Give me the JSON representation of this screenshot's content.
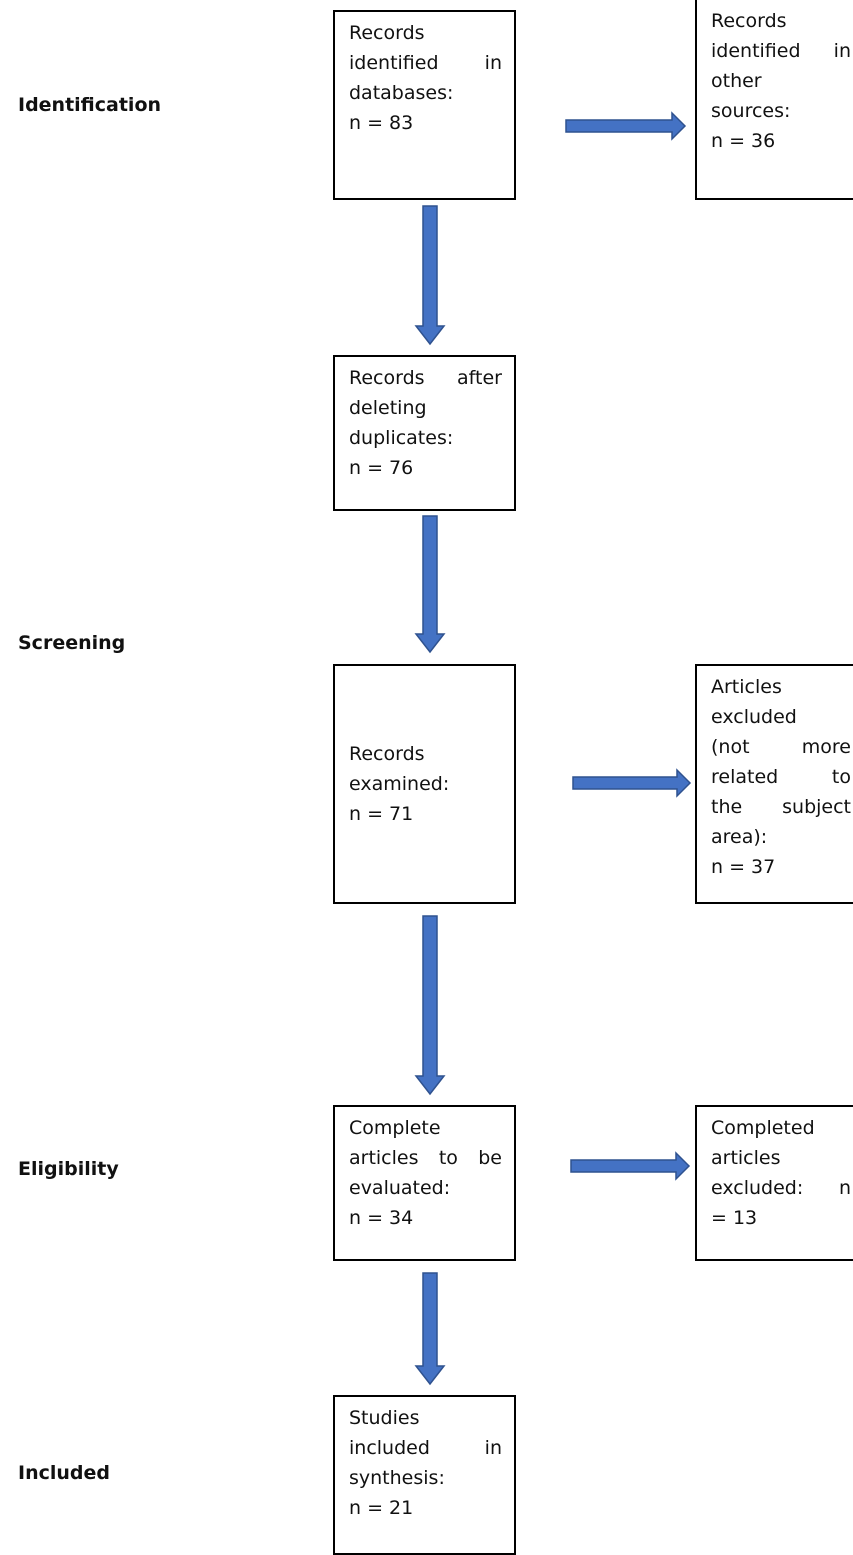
{
  "colors": {
    "arrow_fill": "#4472C4",
    "arrow_stroke": "#2F528F",
    "border": "#000000"
  },
  "stages": {
    "identification": "Identification",
    "screening": "Screening",
    "eligibility": "Eligibility",
    "included": "Included"
  },
  "boxes": {
    "records_identified_databases": {
      "lines": [
        "Records",
        "identified in",
        "databases:",
        "n = 83"
      ]
    },
    "records_other_sources": {
      "lines": [
        "Records",
        "identified in",
        "other",
        "sources:",
        "n = 36"
      ]
    },
    "records_after_duplicates": {
      "lines": [
        "Records after",
        "deleting",
        "duplicates:",
        "n = 76"
      ]
    },
    "records_examined": {
      "lines": [
        "Records",
        "examined:",
        "n = 71"
      ]
    },
    "articles_excluded": {
      "lines": [
        "Articles",
        "excluded",
        "(not more",
        "related to",
        "the subject",
        "area):",
        "n = 37"
      ]
    },
    "complete_articles": {
      "lines": [
        "Complete",
        "articles to be",
        "evaluated:",
        "n = 34"
      ]
    },
    "completed_excluded": {
      "lines": [
        "Completed",
        "articles",
        "excluded: n",
        "= 13"
      ]
    },
    "studies_included": {
      "lines": [
        "Studies",
        "included in",
        "synthesis:",
        "n = 21"
      ]
    }
  }
}
